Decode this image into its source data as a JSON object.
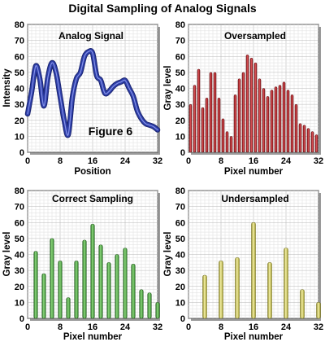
{
  "figure_title": "Digital Sampling of Analog Signals",
  "annotation": "Figure 6",
  "colors": {
    "analog": "#2e3fa8",
    "oversampled": "#c0282e",
    "correct": "#44a03a",
    "undersampled": "#d8d065",
    "panel_bg": "#ffffff",
    "frame_shadow": "#9a9a9a"
  },
  "chart_data": [
    {
      "id": "analog",
      "type": "line",
      "title": "Analog Signal",
      "xlabel": "Position",
      "ylabel": "Intensity",
      "xlim": [
        0,
        32
      ],
      "ylim": [
        0,
        80
      ],
      "xticks": [
        "0",
        "8",
        "16",
        "24",
        "32"
      ],
      "yticks": [
        "0",
        "10",
        "20",
        "30",
        "40",
        "50",
        "60",
        "70",
        "80"
      ],
      "series": [
        {
          "x": [
            0,
            1,
            2,
            3,
            4,
            5,
            6,
            7,
            8,
            9,
            10,
            11,
            12,
            13,
            14,
            15,
            16,
            17,
            18,
            19,
            20,
            21,
            22,
            23,
            24,
            25,
            26,
            27,
            28,
            29,
            30,
            31,
            32
          ],
          "values": [
            24,
            38,
            54,
            46,
            29,
            47,
            56,
            50,
            35,
            20,
            11,
            34,
            46,
            50,
            60,
            63,
            62,
            48,
            45,
            37,
            38,
            41,
            43,
            44,
            45,
            40,
            35,
            26,
            21,
            18,
            17,
            16,
            14
          ]
        }
      ]
    },
    {
      "id": "oversampled",
      "type": "bar",
      "title": "Oversampled",
      "xlabel": "Pixel number",
      "ylabel": "Gray level",
      "xlim": [
        0,
        32
      ],
      "ylim": [
        0,
        80
      ],
      "xticks": [
        "0",
        "8",
        "16",
        "24",
        "32"
      ],
      "yticks": [
        "0",
        "10",
        "20",
        "30",
        "40",
        "50",
        "60",
        "70",
        "80"
      ],
      "x": [
        0.5,
        1.5,
        2.5,
        3.5,
        4.5,
        5.5,
        6.5,
        7.5,
        8.5,
        9.5,
        10.5,
        11.5,
        12.5,
        13.5,
        14.5,
        15.5,
        16.5,
        17.5,
        18.5,
        19.5,
        20.5,
        21.5,
        22.5,
        23.5,
        24.5,
        25.5,
        26.5,
        27.5,
        28.5,
        29.5,
        30.5,
        31.5
      ],
      "values": [
        30,
        42,
        52,
        28,
        34,
        50,
        50,
        34,
        21,
        13,
        10,
        36,
        46,
        50,
        61,
        59,
        56,
        46,
        40,
        35,
        39,
        41,
        42,
        44,
        39,
        36,
        30,
        18,
        17,
        15,
        13,
        11
      ]
    },
    {
      "id": "correct",
      "type": "bar",
      "title": "Correct Sampling",
      "xlabel": "Pixel number",
      "ylabel": "Gray level",
      "xlim": [
        0,
        32
      ],
      "ylim": [
        0,
        80
      ],
      "xticks": [
        "0",
        "8",
        "16",
        "24",
        "32"
      ],
      "yticks": [
        "0",
        "10",
        "20",
        "30",
        "40",
        "50",
        "60",
        "70",
        "80"
      ],
      "x": [
        2,
        4,
        6,
        8,
        10,
        12,
        14,
        16,
        18,
        20,
        22,
        24,
        26,
        28,
        30,
        32
      ],
      "values": [
        42,
        28,
        50,
        36,
        13,
        36,
        49,
        59,
        46,
        35,
        40,
        44,
        34,
        18,
        16,
        10
      ]
    },
    {
      "id": "undersampled",
      "type": "bar",
      "title": "Undersampled",
      "xlabel": "Pixel number",
      "ylabel": "Gray level",
      "xlim": [
        0,
        32
      ],
      "ylim": [
        0,
        80
      ],
      "xticks": [
        "0",
        "8",
        "16",
        "24",
        "32"
      ],
      "yticks": [
        "0",
        "10",
        "20",
        "30",
        "40",
        "50",
        "60",
        "70",
        "80"
      ],
      "x": [
        4,
        8,
        12,
        16,
        20,
        24,
        28,
        32
      ],
      "values": [
        27,
        36,
        38,
        60,
        35,
        44,
        18,
        10
      ]
    }
  ]
}
